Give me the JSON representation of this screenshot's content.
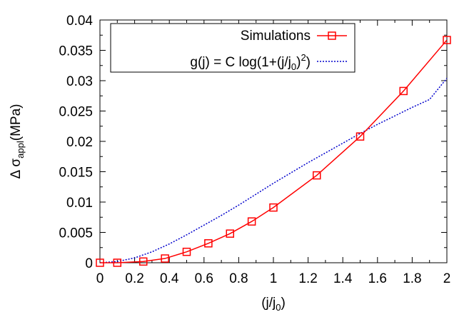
{
  "chart_data": {
    "type": "line",
    "xlabel": {
      "base": "(j/j",
      "sub": "0",
      "tail": ")"
    },
    "ylabel": {
      "pre": "Δ σ",
      "sub": "appl",
      "tail": "(MPa)"
    },
    "xlim": [
      0,
      2
    ],
    "ylim": [
      0,
      0.04
    ],
    "xticks": [
      0,
      0.2,
      0.4,
      0.6,
      0.8,
      1,
      1.2,
      1.4,
      1.6,
      1.8,
      2
    ],
    "xtick_labels": [
      "0",
      "0.2",
      "0.4",
      "0.6",
      "0.8",
      "1",
      "1.2",
      "1.4",
      "1.6",
      "1.8",
      "2"
    ],
    "yticks": [
      0,
      0.005,
      0.01,
      0.015,
      0.02,
      0.025,
      0.03,
      0.035,
      0.04
    ],
    "ytick_labels": [
      "0",
      "0.005",
      "0.01",
      "0.015",
      "0.02",
      "0.025",
      "0.03",
      "0.035",
      "0.04"
    ],
    "grid": false,
    "legend_position": "top-right",
    "series": [
      {
        "name": "Simulations",
        "color": "#ff0000",
        "style": "solid",
        "marker": "square",
        "x": [
          0,
          0.1,
          0.25,
          0.375,
          0.5,
          0.625,
          0.75,
          0.875,
          1.0,
          1.25,
          1.5,
          1.75,
          2.0
        ],
        "y": [
          0,
          0,
          0.0002,
          0.0007,
          0.0018,
          0.0032,
          0.0048,
          0.0068,
          0.0091,
          0.0144,
          0.0208,
          0.0283,
          0.0367
        ]
      },
      {
        "name_parts": {
          "pre": "g(j) = C log(1+(j/j",
          "sub": "0",
          "mid": ")",
          "sup": "2",
          "tail": ")"
        },
        "color": "#0000cc",
        "style": "dotted",
        "x": [
          0,
          0.1,
          0.2,
          0.3,
          0.4,
          0.5,
          0.6,
          0.7,
          0.8,
          0.9,
          1.0,
          1.1,
          1.2,
          1.3,
          1.4,
          1.5,
          1.6,
          1.7,
          1.8,
          1.9,
          2.0
        ],
        "y": [
          0,
          0.0002,
          0.0008,
          0.0018,
          0.0031,
          0.0046,
          0.0062,
          0.0078,
          0.0095,
          0.0113,
          0.0131,
          0.0148,
          0.0165,
          0.0181,
          0.0197,
          0.0213,
          0.0228,
          0.0242,
          0.0256,
          0.0269,
          0.0304
        ]
      }
    ]
  }
}
